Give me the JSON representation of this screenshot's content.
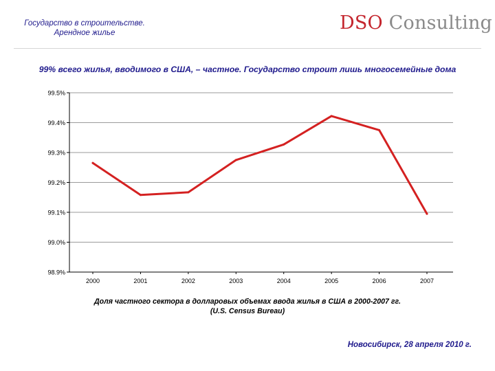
{
  "header": {
    "title_line1": "Государство в строительстве.",
    "title_line2": "Арендное жилье",
    "logo_part1": "DSO",
    "logo_part2": " Consulting"
  },
  "slide": {
    "headline": "99% всего жилья, вводимого в США, – частное. Государство строит лишь многосемейные дома",
    "caption_line1": "Доля частного сектора в  долларовых объемах ввода жилья в США в 2000-2007 гг.",
    "caption_line2": "(U.S. Census Bureau)",
    "footer": "Новосибирск, 28 апреля 2010 г."
  },
  "chart_data": {
    "type": "line",
    "categories": [
      "2000",
      "2001",
      "2002",
      "2003",
      "2004",
      "2005",
      "2006",
      "2007"
    ],
    "series": [
      {
        "values": [
          99.265,
          99.158,
          99.167,
          99.275,
          99.327,
          99.422,
          99.375,
          99.095
        ]
      }
    ],
    "y_ticks": [
      "99.5%",
      "99.4%",
      "99.3%",
      "99.2%",
      "99.1%",
      "99.0%",
      "98.9%"
    ],
    "ylim": [
      98.9,
      99.5
    ],
    "ytick_step": 0.1,
    "grid": true,
    "legend": "none",
    "line_color": "#d42121"
  }
}
